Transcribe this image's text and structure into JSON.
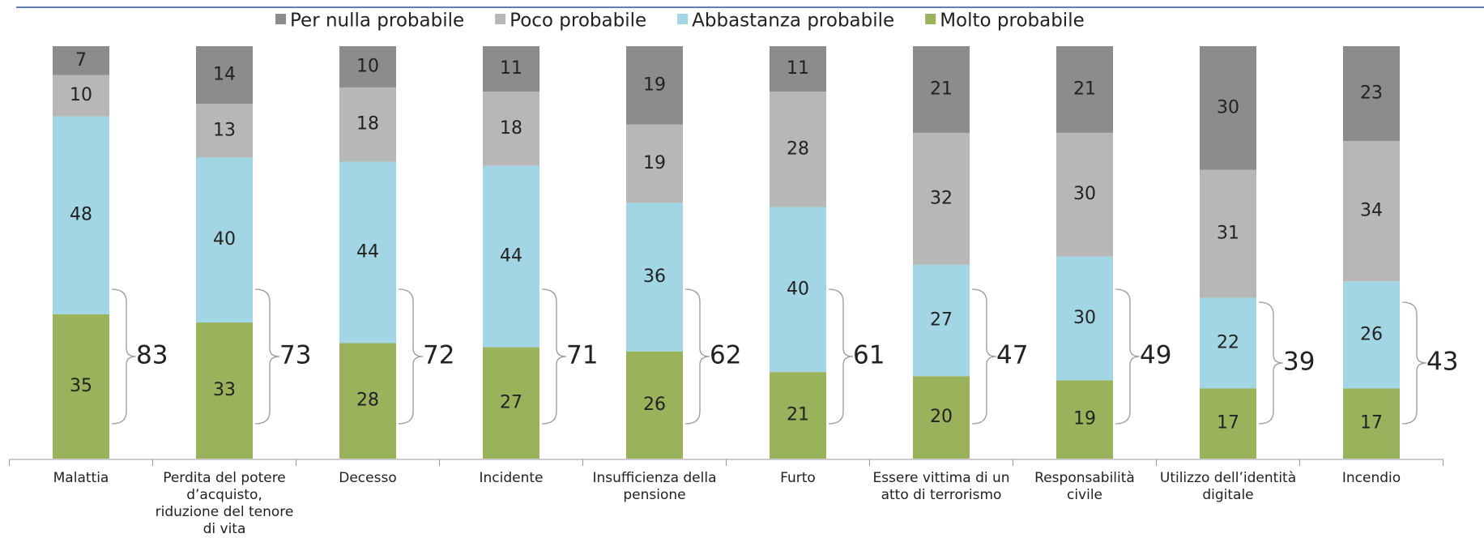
{
  "chart_data": {
    "type": "stacked_bar",
    "categories": [
      "Malattia",
      "Perdita del potere d’acquisto, riduzione del tenore di vita",
      "Decesso",
      "Incidente",
      "Insufficienza della pensione",
      "Furto",
      "Essere vittima di un atto di terrorismo",
      "Responsabilità civile",
      "Utilizzo dell’identità digitale",
      "Incendio"
    ],
    "series": [
      {
        "name": "Per nulla probabile",
        "color": "#8c8c8c",
        "values": [
          7,
          14,
          10,
          11,
          19,
          11,
          21,
          21,
          30,
          23
        ]
      },
      {
        "name": "Poco probabile",
        "color": "#b7b7b7",
        "values": [
          10,
          13,
          18,
          18,
          19,
          28,
          32,
          30,
          31,
          34
        ]
      },
      {
        "name": "Abbastanza probabile",
        "color": "#a3d6e4",
        "values": [
          48,
          40,
          44,
          44,
          36,
          40,
          27,
          30,
          22,
          26
        ]
      },
      {
        "name": "Molto probabile",
        "color": "#9bb25c",
        "values": [
          35,
          33,
          28,
          27,
          26,
          21,
          20,
          19,
          17,
          17
        ]
      }
    ],
    "bracket_totals": [
      83,
      73,
      72,
      71,
      62,
      61,
      47,
      49,
      39,
      43
    ],
    "ylim": [
      0,
      100
    ],
    "legend": "top"
  }
}
